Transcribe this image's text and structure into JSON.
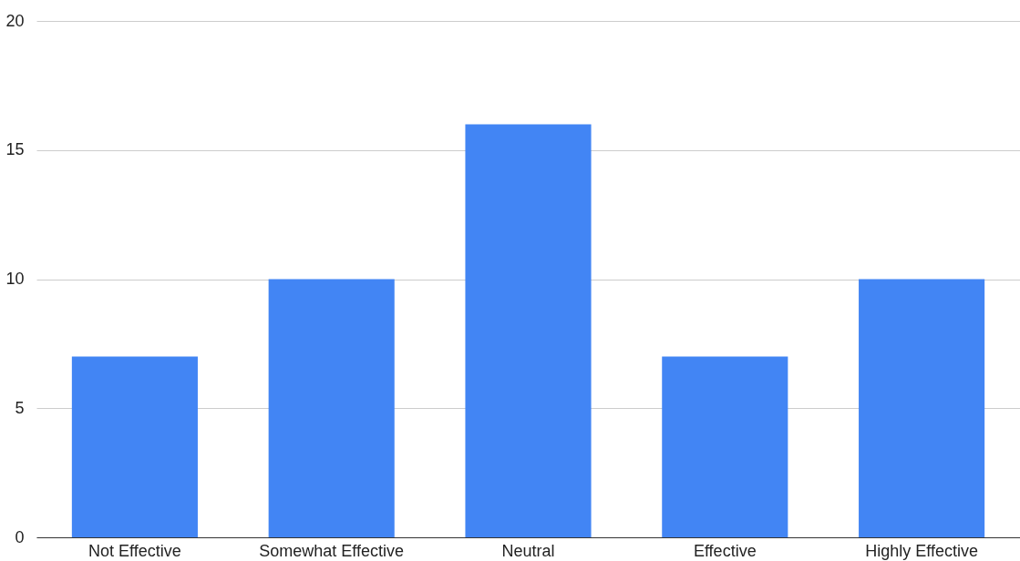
{
  "chart_data": {
    "type": "bar",
    "categories": [
      "Not Effective",
      "Somewhat Effective",
      "Neutral",
      "Effective",
      "Highly Effective"
    ],
    "values": [
      7,
      10,
      16,
      7,
      10
    ],
    "color": "#4285f4",
    "ylim": [
      0,
      20
    ],
    "yticks": [
      0,
      5,
      10,
      15,
      20
    ],
    "grid": "y"
  }
}
